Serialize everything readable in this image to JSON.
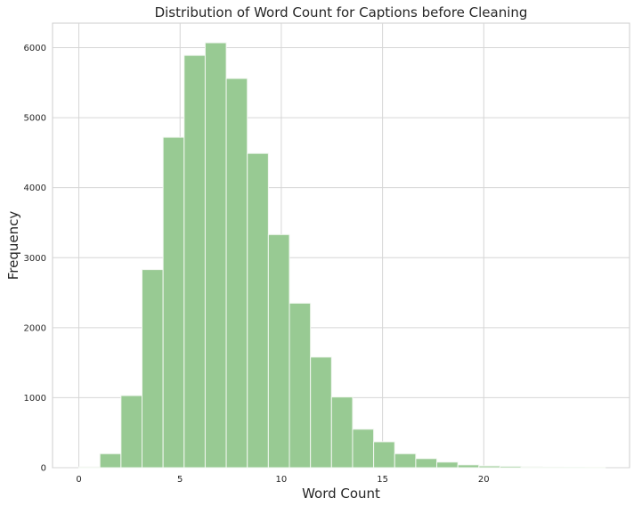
{
  "chart_data": {
    "type": "bar",
    "subtype": "histogram",
    "title": "Distribution of Word Count for Captions before Cleaning",
    "xlabel": "Word Count",
    "ylabel": "Frequency",
    "xlim": [
      -1.3,
      27.2
    ],
    "ylim": [
      0,
      6350
    ],
    "xticks": [
      0,
      5,
      10,
      15,
      20
    ],
    "yticks": [
      0,
      1000,
      2000,
      3000,
      4000,
      5000,
      6000
    ],
    "grid": true,
    "bar_color": "#98CA93",
    "bar_edge_color": "#F2F7F1",
    "bins": [
      {
        "x0": 0.0,
        "x1": 1.04,
        "value": 10
      },
      {
        "x0": 1.04,
        "x1": 2.08,
        "value": 200
      },
      {
        "x0": 2.08,
        "x1": 3.12,
        "value": 1030
      },
      {
        "x0": 3.12,
        "x1": 4.16,
        "value": 2830
      },
      {
        "x0": 4.16,
        "x1": 5.2,
        "value": 4720
      },
      {
        "x0": 5.2,
        "x1": 6.24,
        "value": 5890
      },
      {
        "x0": 6.24,
        "x1": 7.28,
        "value": 6070
      },
      {
        "x0": 7.28,
        "x1": 8.32,
        "value": 5560
      },
      {
        "x0": 8.32,
        "x1": 9.36,
        "value": 4490
      },
      {
        "x0": 9.36,
        "x1": 10.4,
        "value": 3330
      },
      {
        "x0": 10.4,
        "x1": 11.44,
        "value": 2350
      },
      {
        "x0": 11.44,
        "x1": 12.48,
        "value": 1580
      },
      {
        "x0": 12.48,
        "x1": 13.52,
        "value": 1010
      },
      {
        "x0": 13.52,
        "x1": 14.56,
        "value": 550
      },
      {
        "x0": 14.56,
        "x1": 15.6,
        "value": 370
      },
      {
        "x0": 15.6,
        "x1": 16.64,
        "value": 200
      },
      {
        "x0": 16.64,
        "x1": 17.68,
        "value": 130
      },
      {
        "x0": 17.68,
        "x1": 18.72,
        "value": 80
      },
      {
        "x0": 18.72,
        "x1": 19.76,
        "value": 40
      },
      {
        "x0": 19.76,
        "x1": 20.8,
        "value": 25
      },
      {
        "x0": 20.8,
        "x1": 21.84,
        "value": 20
      },
      {
        "x0": 21.84,
        "x1": 22.88,
        "value": 12
      },
      {
        "x0": 22.88,
        "x1": 23.92,
        "value": 8
      },
      {
        "x0": 23.92,
        "x1": 24.96,
        "value": 5
      },
      {
        "x0": 24.96,
        "x1": 26.0,
        "value": 3
      }
    ]
  }
}
